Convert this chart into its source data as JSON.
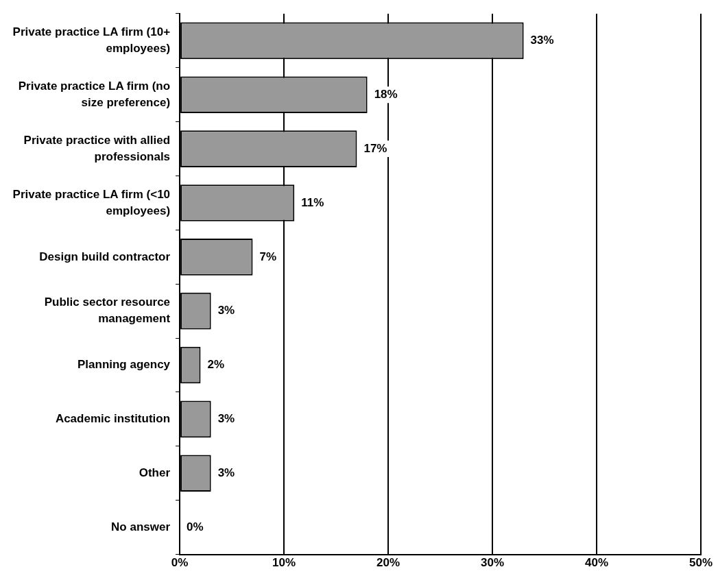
{
  "chart_data": {
    "type": "bar",
    "orientation": "horizontal",
    "categories": [
      "Private practice LA firm (10+ employees)",
      "Private practice LA firm (no size preference)",
      "Private practice with allied professionals",
      "Private practice LA firm (<10 employees)",
      "Design build contractor",
      "Public sector resource management",
      "Planning agency",
      "Academic institution",
      "Other",
      "No answer"
    ],
    "values": [
      33,
      18,
      17,
      11,
      7,
      3,
      2,
      3,
      3,
      0
    ],
    "value_labels": [
      "33%",
      "18%",
      "17%",
      "11%",
      "7%",
      "3%",
      "2%",
      "3%",
      "3%",
      "0%"
    ],
    "color": "#999999",
    "xlim": [
      0,
      50
    ],
    "xticks": [
      {
        "value": 0,
        "label": "0%"
      },
      {
        "value": 10,
        "label": "10%"
      },
      {
        "value": 20,
        "label": "20%"
      },
      {
        "value": 30,
        "label": "30%"
      },
      {
        "value": 40,
        "label": "40%"
      },
      {
        "value": 50,
        "label": "50%"
      }
    ],
    "grid": "x",
    "legend": false
  }
}
